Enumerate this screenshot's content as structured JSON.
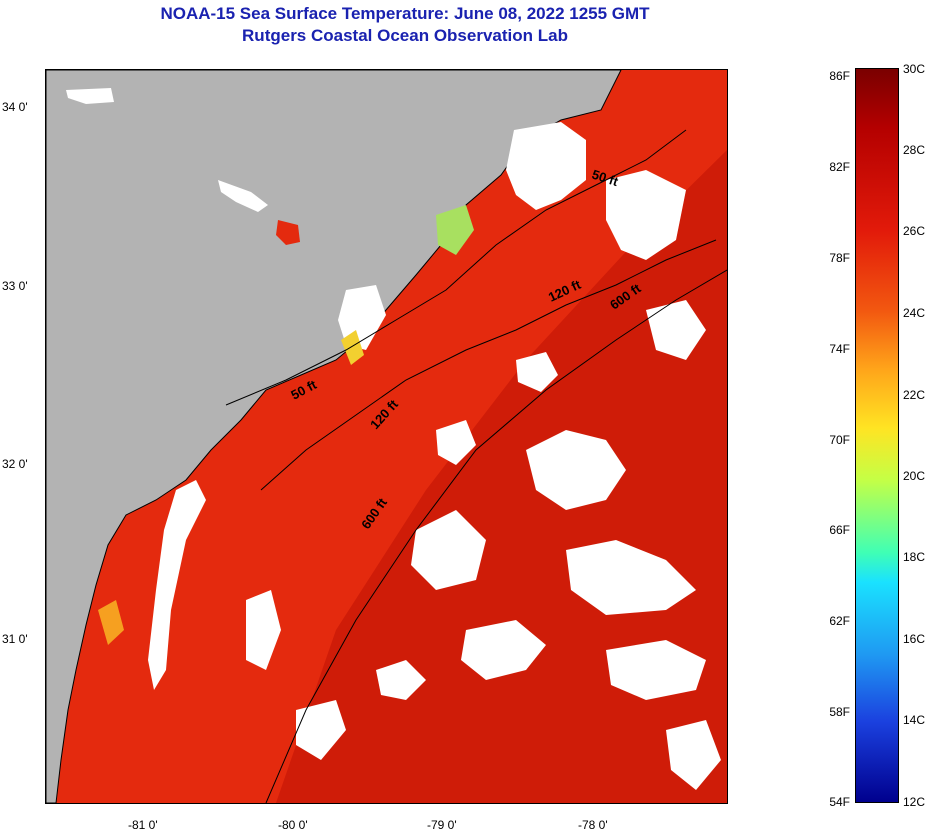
{
  "title": {
    "line1": "NOAA-15 Sea Surface Temperature:  June 08, 2022 1255 GMT",
    "line2": "Rutgers Coastal Ocean Observation Lab"
  },
  "axes": {
    "lat_labels": [
      "34 0'",
      "33 0'",
      "32 0'",
      "31 0'"
    ],
    "lon_labels": [
      "-81 0'",
      "-80 0'",
      "-79 0'",
      "-78 0'"
    ]
  },
  "contours": {
    "labels": [
      "50 ft",
      "50 ft",
      "120 ft",
      "120 ft",
      "600 ft",
      "600 ft"
    ]
  },
  "colorbar": {
    "fahrenheit": [
      "86F",
      "82F",
      "78F",
      "74F",
      "70F",
      "66F",
      "62F",
      "58F",
      "54F"
    ],
    "celsius": [
      "30C",
      "28C",
      "26C",
      "24C",
      "22C",
      "20C",
      "18C",
      "16C",
      "14C",
      "12C"
    ]
  },
  "colors": {
    "land": "#b3b3b3",
    "ocean_warm": "#e42a0e",
    "offshore_hot": "#d01808",
    "cloud": "#ffffff",
    "title": "#1a22b0"
  }
}
